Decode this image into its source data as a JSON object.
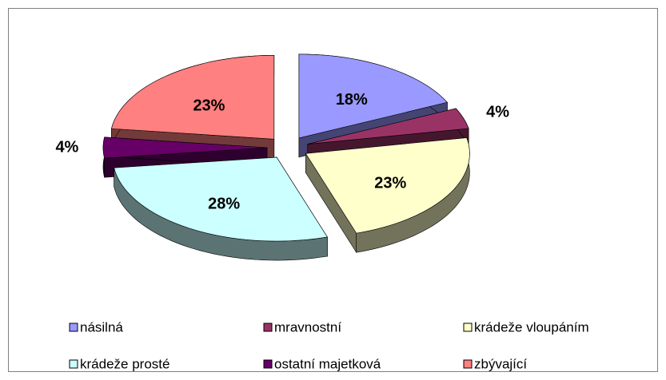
{
  "chart_data": {
    "type": "pie",
    "categories": [
      "násilná",
      "mravnostní",
      "krádeže vloupáním",
      "krádeže prosté",
      "ostatní majetková",
      "zbývající"
    ],
    "values": [
      18,
      4,
      23,
      28,
      4,
      23
    ],
    "value_labels": [
      "18%",
      "4%",
      "23%",
      "28%",
      "4%",
      "23%"
    ],
    "colors": [
      "#9999ff",
      "#993366",
      "#ffffcc",
      "#ccffff",
      "#660066",
      "#ff8080"
    ],
    "legend": "bottom"
  }
}
